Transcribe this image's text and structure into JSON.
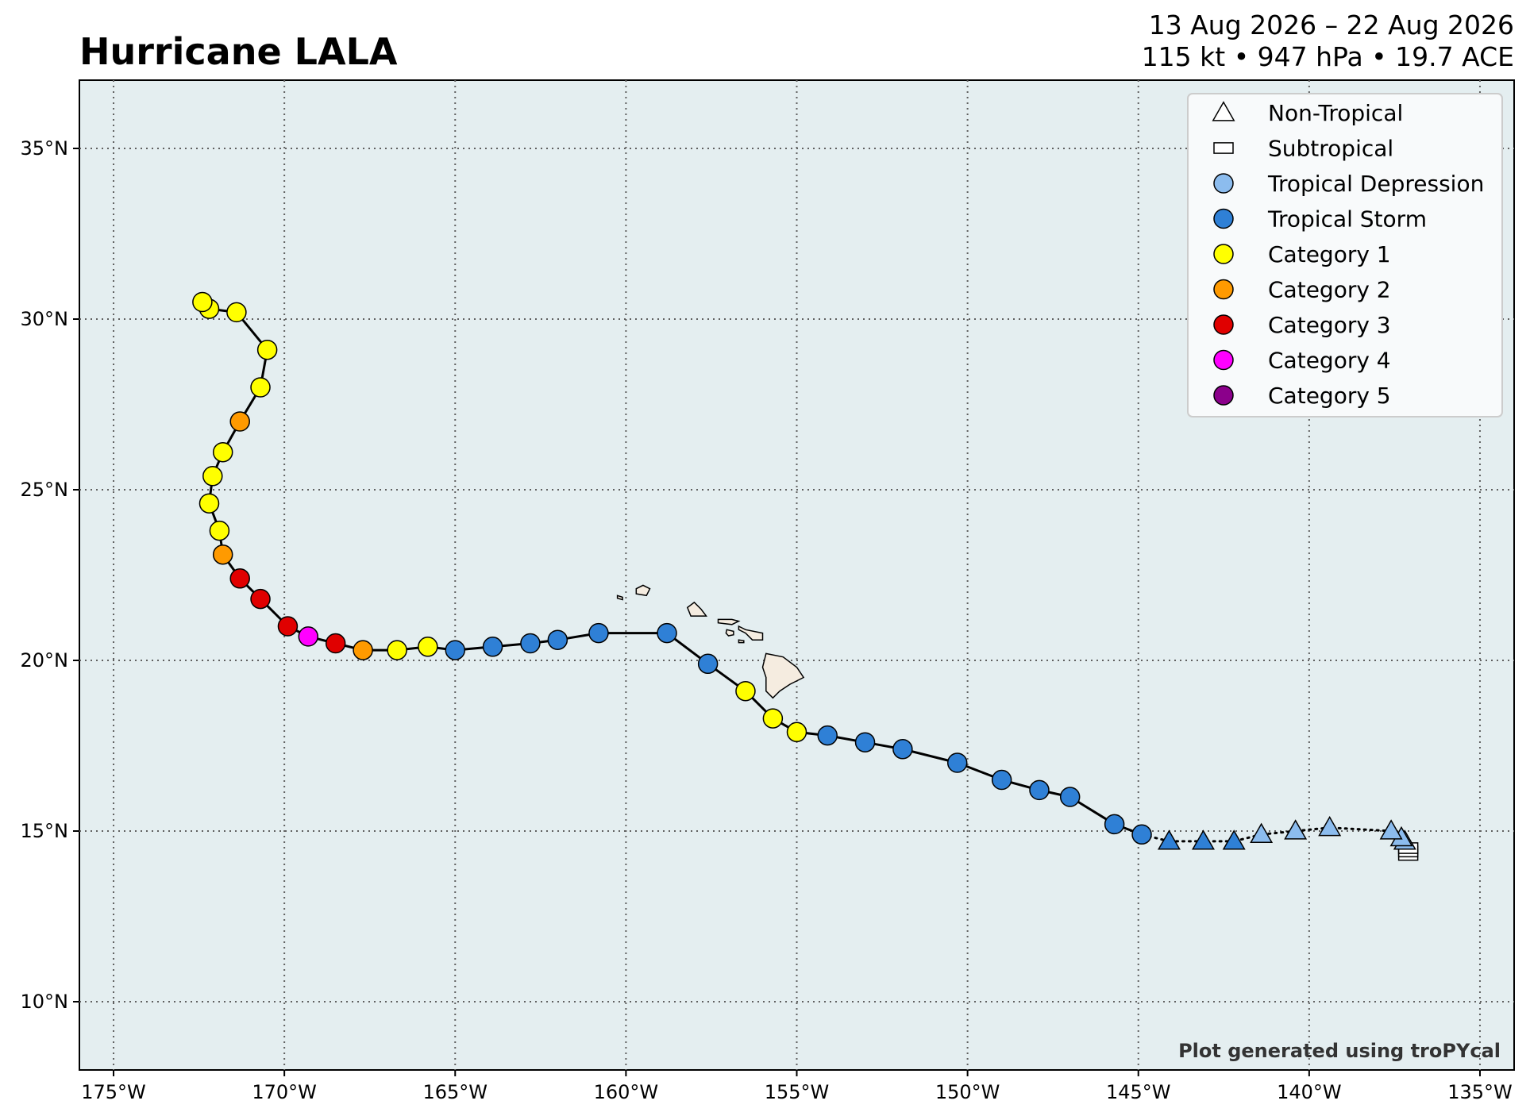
{
  "header": {
    "title": "Hurricane LALA",
    "date_range": "13 Aug 2026 – 22 Aug 2026",
    "stats": "115 kt • 947 hPa • 19.7 ACE"
  },
  "credit": "Plot generated using troPYcal",
  "colors": {
    "ocean": "#e4eef0",
    "land": "#f5ece0",
    "grid": "#606060",
    "track": "#000000",
    "non_tropical": "#ffffff",
    "subtropical": "#ffffff",
    "tropical_depression": "#8cbcee",
    "tropical_storm": "#2f80d6",
    "category_1": "#ffff00",
    "category_2": "#ff9a00",
    "category_3": "#e00000",
    "category_4": "#ff00ff",
    "category_5": "#8b008b"
  },
  "legend": [
    {
      "label": "Non-Tropical",
      "marker": "triangle",
      "color": "#ffffff"
    },
    {
      "label": "Subtropical",
      "marker": "square",
      "color": "#ffffff"
    },
    {
      "label": "Tropical Depression",
      "marker": "circle",
      "color": "#8cbcee"
    },
    {
      "label": "Tropical Storm",
      "marker": "circle",
      "color": "#2f80d6"
    },
    {
      "label": "Category 1",
      "marker": "circle",
      "color": "#ffff00"
    },
    {
      "label": "Category 2",
      "marker": "circle",
      "color": "#ff9a00"
    },
    {
      "label": "Category 3",
      "marker": "circle",
      "color": "#e00000"
    },
    {
      "label": "Category 4",
      "marker": "circle",
      "color": "#ff00ff"
    },
    {
      "label": "Category 5",
      "marker": "circle",
      "color": "#8b008b"
    }
  ],
  "axes": {
    "lon_range": [
      -176,
      -134
    ],
    "lat_range": [
      8,
      37
    ],
    "lon_ticks": [
      {
        "value": -175,
        "label": "175°W"
      },
      {
        "value": -170,
        "label": "170°W"
      },
      {
        "value": -165,
        "label": "165°W"
      },
      {
        "value": -160,
        "label": "160°W"
      },
      {
        "value": -155,
        "label": "155°W"
      },
      {
        "value": -150,
        "label": "150°W"
      },
      {
        "value": -145,
        "label": "145°W"
      },
      {
        "value": -140,
        "label": "140°W"
      },
      {
        "value": -135,
        "label": "135°W"
      }
    ],
    "lat_ticks": [
      {
        "value": 10,
        "label": "10°N"
      },
      {
        "value": 15,
        "label": "15°N"
      },
      {
        "value": 20,
        "label": "20°N"
      },
      {
        "value": 25,
        "label": "25°N"
      },
      {
        "value": 30,
        "label": "30°N"
      },
      {
        "value": 35,
        "label": "35°N"
      }
    ]
  },
  "track": [
    {
      "lon": -137.1,
      "lat": 14.3,
      "marker": "square",
      "category": "subtropical",
      "segment": "dotted"
    },
    {
      "lon": -137.1,
      "lat": 14.4,
      "marker": "square",
      "category": "subtropical",
      "segment": "dotted"
    },
    {
      "lon": -137.1,
      "lat": 14.5,
      "marker": "square",
      "category": "subtropical",
      "segment": "dotted"
    },
    {
      "lon": -137.2,
      "lat": 14.7,
      "marker": "triangle",
      "category": "tropical_depression",
      "segment": "dotted"
    },
    {
      "lon": -137.3,
      "lat": 14.8,
      "marker": "triangle",
      "category": "tropical_depression",
      "segment": "dotted"
    },
    {
      "lon": -137.6,
      "lat": 15.0,
      "marker": "triangle",
      "category": "tropical_depression",
      "segment": "dotted"
    },
    {
      "lon": -139.4,
      "lat": 15.1,
      "marker": "triangle",
      "category": "tropical_depression",
      "segment": "dotted"
    },
    {
      "lon": -140.4,
      "lat": 15.0,
      "marker": "triangle",
      "category": "tropical_depression",
      "segment": "dotted"
    },
    {
      "lon": -141.4,
      "lat": 14.9,
      "marker": "triangle",
      "category": "tropical_depression",
      "segment": "dotted"
    },
    {
      "lon": -142.2,
      "lat": 14.7,
      "marker": "triangle",
      "category": "tropical_storm",
      "segment": "dotted"
    },
    {
      "lon": -143.1,
      "lat": 14.7,
      "marker": "triangle",
      "category": "tropical_storm",
      "segment": "dotted"
    },
    {
      "lon": -144.1,
      "lat": 14.7,
      "marker": "triangle",
      "category": "tropical_storm",
      "segment": "dotted"
    },
    {
      "lon": -144.9,
      "lat": 14.9,
      "marker": "circle",
      "category": "tropical_storm",
      "segment": "solid"
    },
    {
      "lon": -145.7,
      "lat": 15.2,
      "marker": "circle",
      "category": "tropical_storm",
      "segment": "solid"
    },
    {
      "lon": -147.0,
      "lat": 16.0,
      "marker": "circle",
      "category": "tropical_storm",
      "segment": "solid"
    },
    {
      "lon": -147.9,
      "lat": 16.2,
      "marker": "circle",
      "category": "tropical_storm",
      "segment": "solid"
    },
    {
      "lon": -149.0,
      "lat": 16.5,
      "marker": "circle",
      "category": "tropical_storm",
      "segment": "solid"
    },
    {
      "lon": -150.3,
      "lat": 17.0,
      "marker": "circle",
      "category": "tropical_storm",
      "segment": "solid"
    },
    {
      "lon": -151.9,
      "lat": 17.4,
      "marker": "circle",
      "category": "tropical_storm",
      "segment": "solid"
    },
    {
      "lon": -153.0,
      "lat": 17.6,
      "marker": "circle",
      "category": "tropical_storm",
      "segment": "solid"
    },
    {
      "lon": -154.1,
      "lat": 17.8,
      "marker": "circle",
      "category": "tropical_storm",
      "segment": "solid"
    },
    {
      "lon": -155.0,
      "lat": 17.9,
      "marker": "circle",
      "category": "category_1",
      "segment": "solid"
    },
    {
      "lon": -155.7,
      "lat": 18.3,
      "marker": "circle",
      "category": "category_1",
      "segment": "solid"
    },
    {
      "lon": -156.5,
      "lat": 19.1,
      "marker": "circle",
      "category": "category_1",
      "segment": "solid"
    },
    {
      "lon": -157.6,
      "lat": 19.9,
      "marker": "circle",
      "category": "tropical_storm",
      "segment": "solid"
    },
    {
      "lon": -158.8,
      "lat": 20.8,
      "marker": "circle",
      "category": "tropical_storm",
      "segment": "solid"
    },
    {
      "lon": -160.8,
      "lat": 20.8,
      "marker": "circle",
      "category": "tropical_storm",
      "segment": "solid"
    },
    {
      "lon": -162.0,
      "lat": 20.6,
      "marker": "circle",
      "category": "tropical_storm",
      "segment": "solid"
    },
    {
      "lon": -162.8,
      "lat": 20.5,
      "marker": "circle",
      "category": "tropical_storm",
      "segment": "solid"
    },
    {
      "lon": -163.9,
      "lat": 20.4,
      "marker": "circle",
      "category": "tropical_storm",
      "segment": "solid"
    },
    {
      "lon": -165.0,
      "lat": 20.3,
      "marker": "circle",
      "category": "tropical_storm",
      "segment": "solid"
    },
    {
      "lon": -165.8,
      "lat": 20.4,
      "marker": "circle",
      "category": "category_1",
      "segment": "solid"
    },
    {
      "lon": -166.7,
      "lat": 20.3,
      "marker": "circle",
      "category": "category_1",
      "segment": "solid"
    },
    {
      "lon": -167.7,
      "lat": 20.3,
      "marker": "circle",
      "category": "category_2",
      "segment": "solid"
    },
    {
      "lon": -168.5,
      "lat": 20.5,
      "marker": "circle",
      "category": "category_3",
      "segment": "solid"
    },
    {
      "lon": -169.3,
      "lat": 20.7,
      "marker": "circle",
      "category": "category_4",
      "segment": "solid"
    },
    {
      "lon": -169.9,
      "lat": 21.0,
      "marker": "circle",
      "category": "category_3",
      "segment": "solid"
    },
    {
      "lon": -170.7,
      "lat": 21.8,
      "marker": "circle",
      "category": "category_3",
      "segment": "solid"
    },
    {
      "lon": -171.3,
      "lat": 22.4,
      "marker": "circle",
      "category": "category_3",
      "segment": "solid"
    },
    {
      "lon": -171.8,
      "lat": 23.1,
      "marker": "circle",
      "category": "category_2",
      "segment": "solid"
    },
    {
      "lon": -171.9,
      "lat": 23.8,
      "marker": "circle",
      "category": "category_1",
      "segment": "solid"
    },
    {
      "lon": -172.2,
      "lat": 24.6,
      "marker": "circle",
      "category": "category_1",
      "segment": "solid"
    },
    {
      "lon": -172.1,
      "lat": 25.4,
      "marker": "circle",
      "category": "category_1",
      "segment": "solid"
    },
    {
      "lon": -171.8,
      "lat": 26.1,
      "marker": "circle",
      "category": "category_1",
      "segment": "solid"
    },
    {
      "lon": -171.3,
      "lat": 27.0,
      "marker": "circle",
      "category": "category_2",
      "segment": "solid"
    },
    {
      "lon": -170.7,
      "lat": 28.0,
      "marker": "circle",
      "category": "category_1",
      "segment": "solid"
    },
    {
      "lon": -170.5,
      "lat": 29.1,
      "marker": "circle",
      "category": "category_1",
      "segment": "solid"
    },
    {
      "lon": -171.4,
      "lat": 30.2,
      "marker": "circle",
      "category": "category_1",
      "segment": "solid"
    },
    {
      "lon": -172.2,
      "lat": 30.3,
      "marker": "circle",
      "category": "category_1",
      "segment": "solid"
    },
    {
      "lon": -172.4,
      "lat": 30.5,
      "marker": "circle",
      "category": "category_1",
      "segment": "solid"
    }
  ],
  "islands": [
    {
      "name": "Hawaii",
      "points": [
        [
          -155.9,
          20.2
        ],
        [
          -155.4,
          20.1
        ],
        [
          -155.0,
          19.8
        ],
        [
          -154.8,
          19.5
        ],
        [
          -155.2,
          19.3
        ],
        [
          -155.5,
          19.1
        ],
        [
          -155.7,
          18.9
        ],
        [
          -155.9,
          19.1
        ],
        [
          -155.9,
          19.5
        ],
        [
          -156.0,
          19.8
        ]
      ]
    },
    {
      "name": "Maui",
      "points": [
        [
          -156.7,
          21.0
        ],
        [
          -156.5,
          20.9
        ],
        [
          -156.0,
          20.8
        ],
        [
          -156.0,
          20.6
        ],
        [
          -156.3,
          20.6
        ],
        [
          -156.5,
          20.8
        ],
        [
          -156.7,
          20.9
        ]
      ]
    },
    {
      "name": "Molokai",
      "points": [
        [
          -157.3,
          21.2
        ],
        [
          -156.9,
          21.2
        ],
        [
          -156.7,
          21.15
        ],
        [
          -156.9,
          21.05
        ],
        [
          -157.3,
          21.1
        ]
      ]
    },
    {
      "name": "Lanai",
      "points": [
        [
          -157.05,
          20.9
        ],
        [
          -156.85,
          20.85
        ],
        [
          -156.85,
          20.75
        ],
        [
          -157.0,
          20.72
        ],
        [
          -157.07,
          20.8
        ]
      ]
    },
    {
      "name": "Kahoolawe",
      "points": [
        [
          -156.7,
          20.6
        ],
        [
          -156.55,
          20.58
        ],
        [
          -156.55,
          20.52
        ],
        [
          -156.7,
          20.52
        ]
      ]
    },
    {
      "name": "Oahu",
      "points": [
        [
          -158.2,
          21.55
        ],
        [
          -158.0,
          21.7
        ],
        [
          -157.8,
          21.5
        ],
        [
          -157.65,
          21.3
        ],
        [
          -158.1,
          21.3
        ]
      ]
    },
    {
      "name": "Kauai",
      "points": [
        [
          -159.7,
          22.1
        ],
        [
          -159.5,
          22.2
        ],
        [
          -159.3,
          22.1
        ],
        [
          -159.4,
          21.9
        ],
        [
          -159.7,
          21.95
        ]
      ]
    },
    {
      "name": "Niihau",
      "points": [
        [
          -160.25,
          21.9
        ],
        [
          -160.1,
          21.85
        ],
        [
          -160.1,
          21.78
        ],
        [
          -160.25,
          21.82
        ]
      ]
    }
  ]
}
